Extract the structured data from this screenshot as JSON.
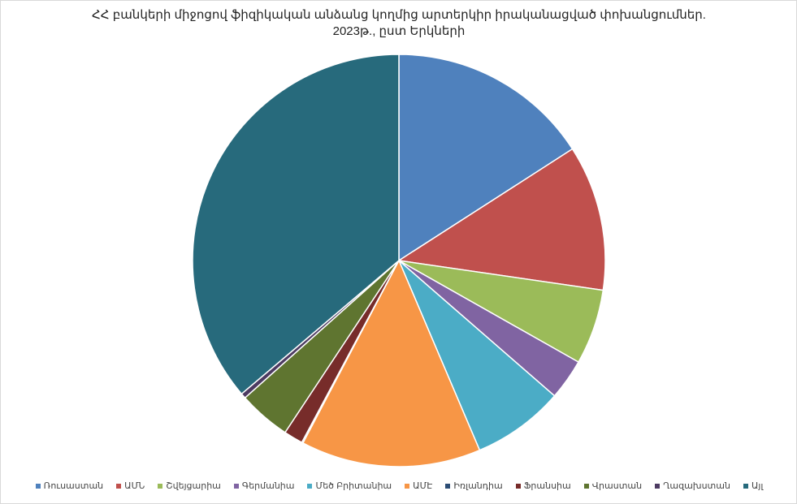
{
  "chart_data": {
    "type": "pie",
    "title": "ՀՀ բանկերի միջոցով ֆիզիկական անձանց կողմից արտերկիր իրականացված փոխանցումներ. 2023թ., ըստ Երկների",
    "categories": [
      "Ռուսաստան",
      "ԱՄՆ",
      "Շվեյցարիա",
      "Գերմանիա",
      "Մեծ Բրիտանիա",
      "ԱՄԷ",
      "Իռլանդիա",
      "Ֆրանսիա",
      "Վրաստան",
      "Ղազախստան",
      "Այլ"
    ],
    "values": [
      15.9,
      11.4,
      5.9,
      3.2,
      7.2,
      14.1,
      0.1,
      1.5,
      4.1,
      0.4,
      36.2
    ],
    "colors": [
      "#4f81bd",
      "#c0504d",
      "#9bbb59",
      "#8064a2",
      "#4bacc6",
      "#f79646",
      "#2c4d75",
      "#772c2a",
      "#5f7530",
      "#4d3b62",
      "#276a7c"
    ],
    "legend": "bottom"
  }
}
